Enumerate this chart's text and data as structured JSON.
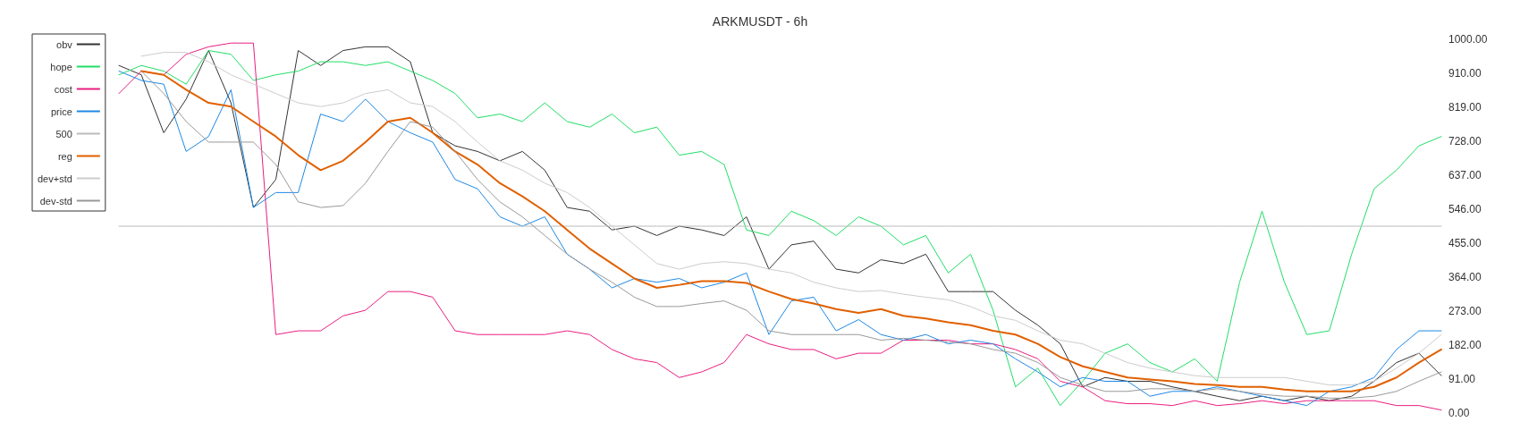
{
  "chart_data": {
    "type": "line",
    "title": "ARKMUSDT - 6h",
    "legend": "top left",
    "marker": "none",
    "line_style": "solid",
    "categories": [
      null,
      null,
      null,
      null,
      null,
      null,
      null,
      null,
      null,
      null,
      null,
      null,
      null,
      null,
      null,
      null,
      null,
      null,
      null,
      null,
      null,
      null,
      null,
      null,
      null,
      null,
      null,
      null,
      null,
      null,
      null,
      null,
      null,
      null,
      null,
      null,
      null,
      null,
      null,
      null,
      null,
      null,
      null,
      null,
      null,
      null,
      null,
      null,
      null,
      null,
      null,
      null,
      null,
      null,
      null,
      null,
      null,
      null,
      null,
      null
    ],
    "ylim": [
      0,
      1000
    ],
    "yticks": [
      {
        "value": 0,
        "label": "0.00"
      },
      {
        "value": 91,
        "label": "91.00"
      },
      {
        "value": 182,
        "label": "182.00"
      },
      {
        "value": 273,
        "label": "273.00"
      },
      {
        "value": 364,
        "label": "364.00"
      },
      {
        "value": 455,
        "label": "455.00"
      },
      {
        "value": 546,
        "label": "546.00"
      },
      {
        "value": 637,
        "label": "637.00"
      },
      {
        "value": 728,
        "label": "728.00"
      },
      {
        "value": 819,
        "label": "819.00"
      },
      {
        "value": 910,
        "label": "910.00"
      },
      {
        "value": 1000,
        "label": "1000.00"
      }
    ],
    "series": [
      {
        "name": "obv",
        "color": "#333333",
        "values": [
          930,
          905,
          750,
          840,
          970,
          830,
          550,
          625,
          970,
          930,
          970,
          980,
          980,
          940,
          750,
          715,
          700,
          675,
          700,
          650,
          550,
          540,
          490,
          500,
          475,
          500,
          490,
          475,
          525,
          385,
          450,
          460,
          385,
          375,
          410,
          400,
          425,
          325,
          325,
          325,
          275,
          235,
          185,
          70,
          95,
          85,
          85,
          70,
          58,
          45,
          33,
          45,
          33,
          45,
          33,
          45,
          85,
          135,
          160,
          100
        ]
      },
      {
        "name": "hope",
        "color": "#22dd66",
        "values": [
          905,
          930,
          915,
          880,
          970,
          960,
          890,
          905,
          915,
          940,
          940,
          930,
          940,
          915,
          890,
          855,
          790,
          800,
          780,
          830,
          780,
          765,
          800,
          750,
          765,
          690,
          700,
          665,
          490,
          475,
          540,
          515,
          475,
          525,
          500,
          450,
          475,
          375,
          425,
          275,
          70,
          120,
          20,
          85,
          160,
          185,
          135,
          110,
          145,
          85,
          350,
          540,
          350,
          210,
          220,
          425,
          600,
          650,
          715,
          740
        ]
      },
      {
        "name": "cost",
        "color": "#e91e80",
        "values": [
          855,
          915,
          905,
          960,
          980,
          990,
          990,
          210,
          220,
          220,
          260,
          275,
          325,
          325,
          310,
          220,
          210,
          210,
          210,
          210,
          220,
          210,
          170,
          145,
          135,
          95,
          110,
          135,
          210,
          185,
          170,
          170,
          145,
          160,
          160,
          195,
          195,
          195,
          185,
          185,
          170,
          145,
          85,
          70,
          33,
          25,
          25,
          20,
          33,
          20,
          25,
          33,
          25,
          33,
          33,
          33,
          33,
          20,
          20,
          8
        ]
      },
      {
        "name": "price",
        "color": "#1e88e5",
        "values": [
          915,
          890,
          880,
          700,
          740,
          865,
          550,
          590,
          590,
          800,
          780,
          840,
          780,
          750,
          725,
          625,
          600,
          525,
          500,
          525,
          425,
          385,
          335,
          360,
          350,
          360,
          335,
          350,
          375,
          210,
          300,
          310,
          220,
          250,
          210,
          195,
          210,
          185,
          195,
          185,
          145,
          110,
          70,
          95,
          85,
          85,
          45,
          58,
          58,
          70,
          58,
          45,
          33,
          20,
          58,
          70,
          95,
          170,
          220,
          220
        ]
      },
      {
        "name": "500",
        "color": "#bbbbbb",
        "values": [
          500,
          500,
          500,
          500,
          500,
          500,
          500,
          500,
          500,
          500,
          500,
          500,
          500,
          500,
          500,
          500,
          500,
          500,
          500,
          500,
          500,
          500,
          500,
          500,
          500,
          500,
          500,
          500,
          500,
          500,
          500,
          500,
          500,
          500,
          500,
          500,
          500,
          500,
          500,
          500,
          500,
          500,
          500,
          500,
          500,
          500,
          500,
          500,
          500,
          500,
          500,
          500,
          500,
          500,
          500,
          500,
          500,
          500,
          500,
          500
        ]
      },
      {
        "name": "reg",
        "color": "#e06000",
        "values": [
          null,
          915,
          905,
          865,
          830,
          820,
          780,
          740,
          690,
          650,
          675,
          725,
          780,
          790,
          750,
          700,
          665,
          615,
          580,
          540,
          490,
          440,
          400,
          360,
          335,
          343,
          353,
          353,
          348,
          325,
          305,
          293,
          278,
          268,
          278,
          260,
          253,
          243,
          235,
          220,
          210,
          185,
          150,
          125,
          110,
          95,
          90,
          85,
          78,
          75,
          70,
          70,
          63,
          58,
          58,
          58,
          70,
          95,
          135,
          170
        ]
      },
      {
        "name": "dev+std",
        "color": "#cccccc",
        "values": [
          null,
          955,
          965,
          965,
          940,
          905,
          880,
          855,
          830,
          820,
          830,
          855,
          865,
          830,
          820,
          780,
          725,
          675,
          650,
          615,
          590,
          550,
          500,
          450,
          400,
          385,
          400,
          405,
          400,
          385,
          375,
          350,
          335,
          325,
          328,
          318,
          310,
          303,
          285,
          260,
          248,
          220,
          195,
          185,
          160,
          135,
          120,
          110,
          100,
          95,
          95,
          95,
          95,
          85,
          75,
          75,
          85,
          120,
          160,
          210
        ]
      },
      {
        "name": "dev-std",
        "color": "#999999",
        "values": [
          null,
          915,
          855,
          780,
          725,
          725,
          725,
          665,
          565,
          550,
          555,
          615,
          700,
          780,
          765,
          700,
          625,
          565,
          525,
          475,
          425,
          385,
          350,
          310,
          285,
          285,
          293,
          300,
          275,
          220,
          210,
          210,
          210,
          210,
          195,
          200,
          195,
          190,
          185,
          170,
          160,
          135,
          95,
          75,
          58,
          58,
          65,
          65,
          58,
          65,
          58,
          50,
          45,
          45,
          40,
          40,
          45,
          58,
          85,
          110
        ]
      }
    ]
  }
}
